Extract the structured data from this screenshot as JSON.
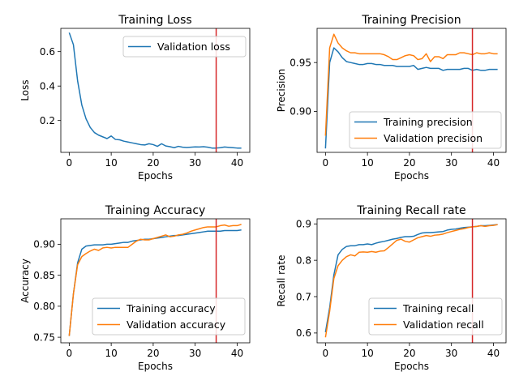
{
  "chart_data": [
    {
      "type": "line",
      "title": "Training Loss",
      "xlabel": "Epochs",
      "ylabel": "Loss",
      "xlim": [
        -2,
        43
      ],
      "ylim": [
        0.015,
        0.735
      ],
      "xticks": [
        0,
        10,
        20,
        30,
        40
      ],
      "yticks": [
        0.2,
        0.4,
        0.6
      ],
      "ytick_labels": [
        "0.2",
        "0.4",
        "0.6"
      ],
      "legend_position": "top-right",
      "vline": {
        "x": 35,
        "color": "#d62728"
      },
      "series": [
        {
          "name": "Validation loss",
          "color": "#1f77b4",
          "x": [
            0,
            1,
            2,
            3,
            4,
            5,
            6,
            7,
            8,
            9,
            10,
            11,
            12,
            13,
            14,
            15,
            16,
            17,
            18,
            19,
            20,
            21,
            22,
            23,
            24,
            25,
            26,
            27,
            28,
            29,
            30,
            31,
            32,
            33,
            34,
            35,
            36,
            37,
            38,
            39,
            40,
            41
          ],
          "values": [
            0.71,
            0.64,
            0.43,
            0.29,
            0.21,
            0.16,
            0.13,
            0.115,
            0.105,
            0.095,
            0.11,
            0.09,
            0.088,
            0.08,
            0.075,
            0.07,
            0.065,
            0.06,
            0.058,
            0.065,
            0.06,
            0.05,
            0.065,
            0.052,
            0.048,
            0.042,
            0.05,
            0.045,
            0.043,
            0.045,
            0.047,
            0.046,
            0.048,
            0.045,
            0.04,
            0.04,
            0.042,
            0.046,
            0.044,
            0.042,
            0.04,
            0.04
          ]
        }
      ]
    },
    {
      "type": "line",
      "title": "Training Precision",
      "xlabel": "Epochs",
      "ylabel": "Precision",
      "xlim": [
        -2,
        43
      ],
      "ylim": [
        0.858,
        0.985
      ],
      "xticks": [
        0,
        10,
        20,
        30,
        40
      ],
      "yticks": [
        0.9,
        0.95
      ],
      "ytick_labels": [
        "0.90",
        "0.95"
      ],
      "legend_position": "bottom-right",
      "vline": {
        "x": 35,
        "color": "#d62728"
      },
      "series": [
        {
          "name": "Training precision",
          "color": "#1f77b4",
          "x": [
            0,
            1,
            2,
            3,
            4,
            5,
            6,
            7,
            8,
            9,
            10,
            11,
            12,
            13,
            14,
            15,
            16,
            17,
            18,
            19,
            20,
            21,
            22,
            23,
            24,
            25,
            26,
            27,
            28,
            29,
            30,
            31,
            32,
            33,
            34,
            35,
            36,
            37,
            38,
            39,
            40,
            41
          ],
          "values": [
            0.862,
            0.95,
            0.965,
            0.961,
            0.955,
            0.951,
            0.95,
            0.949,
            0.948,
            0.948,
            0.949,
            0.949,
            0.948,
            0.948,
            0.947,
            0.947,
            0.947,
            0.946,
            0.946,
            0.946,
            0.946,
            0.947,
            0.943,
            0.944,
            0.945,
            0.944,
            0.944,
            0.944,
            0.942,
            0.943,
            0.943,
            0.943,
            0.943,
            0.944,
            0.944,
            0.942,
            0.943,
            0.942,
            0.942,
            0.943,
            0.943,
            0.943
          ]
        },
        {
          "name": "Validation precision",
          "color": "#ff7f0e",
          "x": [
            0,
            1,
            2,
            3,
            4,
            5,
            6,
            7,
            8,
            9,
            10,
            11,
            12,
            13,
            14,
            15,
            16,
            17,
            18,
            19,
            20,
            21,
            22,
            23,
            24,
            25,
            26,
            27,
            28,
            29,
            30,
            31,
            32,
            33,
            34,
            35,
            36,
            37,
            38,
            39,
            40,
            41
          ],
          "values": [
            0.875,
            0.965,
            0.979,
            0.97,
            0.965,
            0.962,
            0.96,
            0.96,
            0.959,
            0.959,
            0.959,
            0.959,
            0.959,
            0.959,
            0.958,
            0.956,
            0.953,
            0.953,
            0.955,
            0.957,
            0.958,
            0.957,
            0.953,
            0.954,
            0.959,
            0.951,
            0.956,
            0.956,
            0.954,
            0.958,
            0.958,
            0.958,
            0.96,
            0.96,
            0.959,
            0.958,
            0.96,
            0.959,
            0.959,
            0.96,
            0.959,
            0.959
          ]
        }
      ]
    },
    {
      "type": "line",
      "title": "Training Accuracy",
      "xlabel": "Epochs",
      "ylabel": "Accuracy",
      "xlim": [
        -2,
        43
      ],
      "ylim": [
        0.741,
        0.941
      ],
      "xticks": [
        0,
        10,
        20,
        30,
        40
      ],
      "yticks": [
        0.75,
        0.8,
        0.85,
        0.9
      ],
      "ytick_labels": [
        "0.75",
        "0.80",
        "0.85",
        "0.90"
      ],
      "legend_position": "bottom-right",
      "vline": {
        "x": 35,
        "color": "#d62728"
      },
      "series": [
        {
          "name": "Training accuracy",
          "color": "#1f77b4",
          "x": [
            0,
            1,
            2,
            3,
            4,
            5,
            6,
            7,
            8,
            9,
            10,
            11,
            12,
            13,
            14,
            15,
            16,
            17,
            18,
            19,
            20,
            21,
            22,
            23,
            24,
            25,
            26,
            27,
            28,
            29,
            30,
            31,
            32,
            33,
            34,
            35,
            36,
            37,
            38,
            39,
            40,
            41
          ],
          "values": [
            0.752,
            0.82,
            0.87,
            0.892,
            0.897,
            0.898,
            0.899,
            0.899,
            0.899,
            0.9,
            0.9,
            0.901,
            0.902,
            0.903,
            0.903,
            0.905,
            0.906,
            0.907,
            0.908,
            0.908,
            0.909,
            0.91,
            0.911,
            0.912,
            0.913,
            0.914,
            0.914,
            0.915,
            0.916,
            0.917,
            0.918,
            0.919,
            0.92,
            0.921,
            0.921,
            0.921,
            0.921,
            0.922,
            0.922,
            0.922,
            0.922,
            0.923
          ]
        },
        {
          "name": "Validation accuracy",
          "color": "#ff7f0e",
          "x": [
            0,
            1,
            2,
            3,
            4,
            5,
            6,
            7,
            8,
            9,
            10,
            11,
            12,
            13,
            14,
            15,
            16,
            17,
            18,
            19,
            20,
            21,
            22,
            23,
            24,
            25,
            26,
            27,
            28,
            29,
            30,
            31,
            32,
            33,
            34,
            35,
            36,
            37,
            38,
            39,
            40,
            41
          ],
          "values": [
            0.752,
            0.82,
            0.867,
            0.88,
            0.885,
            0.889,
            0.892,
            0.89,
            0.894,
            0.895,
            0.894,
            0.895,
            0.895,
            0.895,
            0.895,
            0.9,
            0.905,
            0.908,
            0.907,
            0.907,
            0.909,
            0.911,
            0.913,
            0.915,
            0.912,
            0.913,
            0.915,
            0.916,
            0.918,
            0.921,
            0.923,
            0.925,
            0.927,
            0.928,
            0.928,
            0.928,
            0.93,
            0.931,
            0.929,
            0.93,
            0.93,
            0.932
          ]
        }
      ]
    },
    {
      "type": "line",
      "title": "Training Recall rate",
      "xlabel": "Epochs",
      "ylabel": "Recall rate",
      "xlim": [
        -2,
        43
      ],
      "ylim": [
        0.573,
        0.914
      ],
      "xticks": [
        0,
        10,
        20,
        30,
        40
      ],
      "yticks": [
        0.6,
        0.7,
        0.8,
        0.9
      ],
      "ytick_labels": [
        "0.6",
        "0.7",
        "0.8",
        "0.9"
      ],
      "legend_position": "bottom-right",
      "vline": {
        "x": 35,
        "color": "#d62728"
      },
      "series": [
        {
          "name": "Training recall",
          "color": "#1f77b4",
          "x": [
            0,
            1,
            2,
            3,
            4,
            5,
            6,
            7,
            8,
            9,
            10,
            11,
            12,
            13,
            14,
            15,
            16,
            17,
            18,
            19,
            20,
            21,
            22,
            23,
            24,
            25,
            26,
            27,
            28,
            29,
            30,
            31,
            32,
            33,
            34,
            35,
            36,
            37,
            38,
            39,
            40,
            41
          ],
          "values": [
            0.602,
            0.67,
            0.76,
            0.815,
            0.83,
            0.838,
            0.84,
            0.84,
            0.843,
            0.843,
            0.845,
            0.843,
            0.847,
            0.85,
            0.852,
            0.855,
            0.858,
            0.86,
            0.863,
            0.865,
            0.865,
            0.866,
            0.871,
            0.875,
            0.876,
            0.876,
            0.877,
            0.878,
            0.879,
            0.883,
            0.885,
            0.886,
            0.888,
            0.89,
            0.891,
            0.892,
            0.893,
            0.895,
            0.895,
            0.896,
            0.897,
            0.898
          ]
        },
        {
          "name": "Validation recall",
          "color": "#ff7f0e",
          "x": [
            0,
            1,
            2,
            3,
            4,
            5,
            6,
            7,
            8,
            9,
            10,
            11,
            12,
            13,
            14,
            15,
            16,
            17,
            18,
            19,
            20,
            21,
            22,
            23,
            24,
            25,
            26,
            27,
            28,
            29,
            30,
            31,
            32,
            33,
            34,
            35,
            36,
            37,
            38,
            39,
            40,
            41
          ],
          "values": [
            0.588,
            0.66,
            0.75,
            0.785,
            0.8,
            0.81,
            0.815,
            0.812,
            0.822,
            0.823,
            0.822,
            0.824,
            0.822,
            0.825,
            0.826,
            0.835,
            0.845,
            0.855,
            0.858,
            0.852,
            0.85,
            0.856,
            0.862,
            0.865,
            0.868,
            0.866,
            0.869,
            0.87,
            0.872,
            0.876,
            0.879,
            0.882,
            0.885,
            0.887,
            0.89,
            0.892,
            0.893,
            0.895,
            0.893,
            0.895,
            0.896,
            0.898
          ]
        }
      ]
    }
  ]
}
